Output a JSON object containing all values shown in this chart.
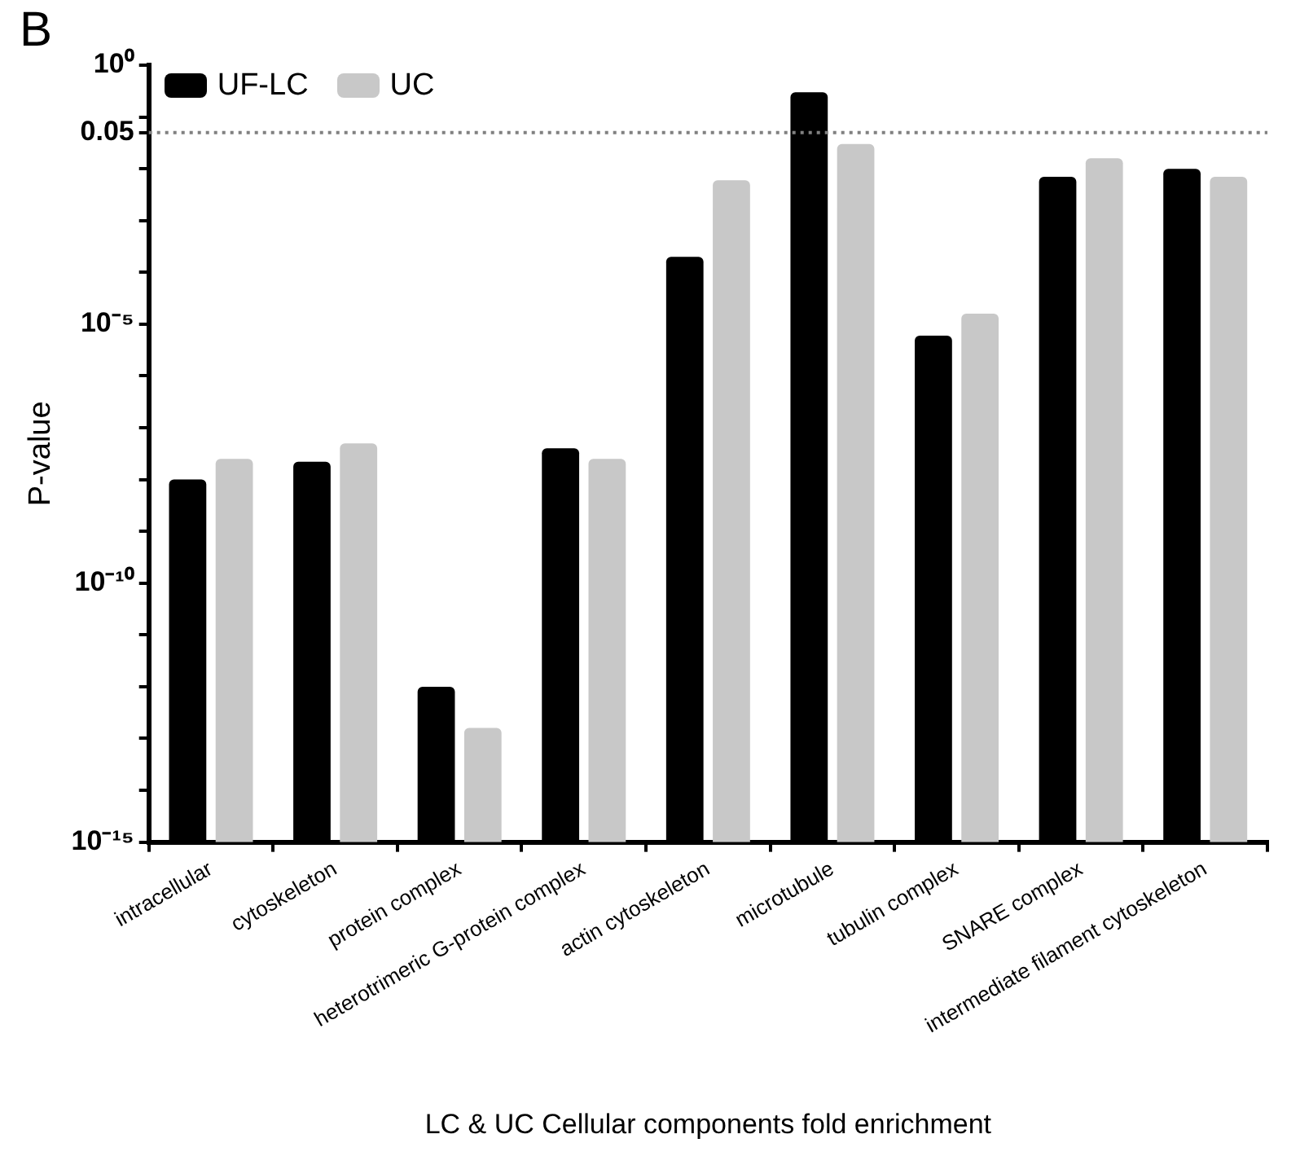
{
  "chart_data": {
    "type": "bar",
    "title": "B",
    "xlabel": "LC & UC Cellular components fold enrichment",
    "ylabel": "P-value",
    "categories": [
      "intracellular",
      "cytoskeleton",
      "protein complex",
      "heterotrimeric G-protein complex",
      "actin cytoskeleton",
      "microtubule",
      "tubulin complex",
      "SNARE complex",
      "intermediate filament cytoskeleton"
    ],
    "series": [
      {
        "name": "UF-LC",
        "color": "#000000",
        "values": [
          1e-08,
          2.2e-08,
          1e-12,
          4e-08,
          0.0002,
          0.3,
          6e-06,
          0.007,
          0.01
        ]
      },
      {
        "name": "UC",
        "color": "#c8c8c8",
        "values": [
          2.5e-08,
          5e-08,
          1.6e-13,
          2.5e-08,
          0.006,
          0.03,
          1.6e-05,
          0.016,
          0.007
        ]
      }
    ],
    "log": "y",
    "ylim": [
      1e-15,
      1
    ],
    "yticks": [
      {
        "value": 1,
        "label": "10⁰"
      },
      {
        "value": 0.1,
        "label": null
      },
      {
        "value": 0.05,
        "label": "0.05"
      },
      {
        "value": 0.01,
        "label": null
      },
      {
        "value": 0.001,
        "label": null
      },
      {
        "value": 0.0001,
        "label": null
      },
      {
        "value": 1e-05,
        "label": "10⁻⁵"
      },
      {
        "value": 1e-06,
        "label": null
      },
      {
        "value": 1e-07,
        "label": null
      },
      {
        "value": 1e-08,
        "label": null
      },
      {
        "value": 1e-09,
        "label": null
      },
      {
        "value": 1e-10,
        "label": "10⁻¹⁰"
      },
      {
        "value": 1e-11,
        "label": null
      },
      {
        "value": 1e-12,
        "label": null
      },
      {
        "value": 1e-13,
        "label": null
      },
      {
        "value": 1e-14,
        "label": null
      },
      {
        "value": 1e-15,
        "label": "10⁻¹⁵"
      }
    ],
    "ref_lines": [
      {
        "axis": "y",
        "value": 0.05,
        "color": "#808080",
        "line_style": "dotted"
      }
    ],
    "grid": false,
    "legend": "top left"
  }
}
